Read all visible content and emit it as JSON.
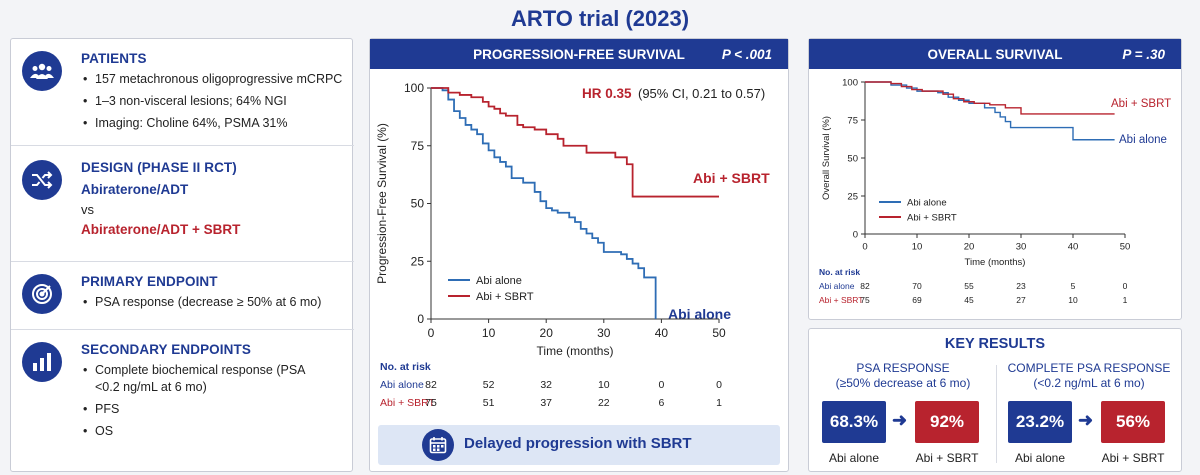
{
  "title": "ARTO trial (2023)",
  "left": {
    "patients": {
      "heading": "PATIENTS",
      "bullets": [
        "157 metachronous oligoprogressive mCRPC",
        "1–3 non-visceral lesions; 64% NGI",
        "Imaging: Choline 64%, PSMA 31%"
      ]
    },
    "design": {
      "heading": "DESIGN (PHASE II RCT)",
      "arm1": "Abiraterone/ADT",
      "vs": "vs",
      "arm2": "Abiraterone/ADT + SBRT"
    },
    "primary": {
      "heading": "PRIMARY ENDPOINT",
      "bullets": [
        "PSA response (decrease ≥ 50% at 6 mo)"
      ]
    },
    "secondary": {
      "heading": "SECONDARY ENDPOINTS",
      "bullets": [
        "Complete biochemical response (PSA <0.2 ng/mL at 6 mo)",
        "PFS",
        "OS"
      ]
    }
  },
  "pfs": {
    "header": "PROGRESSION-FREE SURVIVAL",
    "pvalue": "P < .001",
    "hr_bold": "HR 0.35",
    "hr_rest": " (95% CI, 0.21 to 0.57)",
    "label_sbrt": "Abi + SBRT",
    "label_alone": "Abi alone",
    "risk": {
      "title": "No. at risk",
      "rows": [
        {
          "label": "Abi alone",
          "values": [
            "82",
            "52",
            "32",
            "10",
            "0",
            "0"
          ]
        },
        {
          "label": "Abi + SBRT",
          "values": [
            "75",
            "51",
            "37",
            "22",
            "6",
            "1"
          ]
        }
      ]
    },
    "banner": "Delayed progression with SBRT"
  },
  "os": {
    "header": "OVERALL SURVIVAL",
    "pvalue": "P = .30",
    "label_sbrt": "Abi + SBRT",
    "label_alone": "Abi alone",
    "risk": {
      "title": "No. at risk",
      "rows": [
        {
          "label": "Abi alone",
          "values": [
            "82",
            "70",
            "55",
            "23",
            "5",
            "0"
          ]
        },
        {
          "label": "Abi + SBRT",
          "values": [
            "75",
            "69",
            "45",
            "27",
            "10",
            "1"
          ]
        }
      ]
    }
  },
  "key_results": {
    "title": "KEY RESULTS",
    "psa": {
      "heading1": "PSA RESPONSE",
      "heading2": "(≥50% decrease at 6 mo)",
      "value_alone": "68.3%",
      "value_sbrt": "92%",
      "label_alone": "Abi alone",
      "label_sbrt": "Abi + SBRT"
    },
    "complete": {
      "heading1": "COMPLETE PSA RESPONSE",
      "heading2": "(<0.2 ng/mL at 6 mo)",
      "value_alone": "23.2%",
      "value_sbrt": "56%",
      "label_alone": "Abi alone",
      "label_sbrt": "Abi + SBRT"
    }
  },
  "colors": {
    "blue": "#1f3a93",
    "red": "#b8232e",
    "alone_line": "#2e6db5",
    "sbrt_line": "#b8232e"
  },
  "chart_data": [
    {
      "type": "line",
      "title": "PROGRESSION-FREE SURVIVAL",
      "xlabel": "Time (months)",
      "ylabel": "Progression-Free Survival (%)",
      "xlim": [
        0,
        50
      ],
      "ylim": [
        0,
        100
      ],
      "xticks": [
        "0",
        "10",
        "20",
        "30",
        "40",
        "50"
      ],
      "yticks": [
        "0",
        "25",
        "50",
        "75",
        "100"
      ],
      "legend": "bottom-left",
      "series": [
        {
          "name": "Abi alone",
          "color": "#2e6db5",
          "points": [
            [
              0,
              100
            ],
            [
              2,
              99
            ],
            [
              3,
              95
            ],
            [
              4,
              90
            ],
            [
              5,
              87
            ],
            [
              6,
              84
            ],
            [
              7,
              82
            ],
            [
              8,
              80
            ],
            [
              9,
              76
            ],
            [
              10,
              73
            ],
            [
              11,
              70
            ],
            [
              12,
              68
            ],
            [
              13,
              66
            ],
            [
              14,
              61
            ],
            [
              16,
              59
            ],
            [
              18,
              55
            ],
            [
              19,
              51
            ],
            [
              20,
              48
            ],
            [
              21,
              47
            ],
            [
              22,
              46
            ],
            [
              24,
              44
            ],
            [
              25,
              42
            ],
            [
              26,
              39
            ],
            [
              27,
              37
            ],
            [
              28,
              35
            ],
            [
              29,
              33
            ],
            [
              30,
              29
            ],
            [
              32,
              29
            ],
            [
              33,
              28
            ],
            [
              34,
              26
            ],
            [
              35,
              24
            ],
            [
              36,
              22
            ],
            [
              37,
              18
            ],
            [
              39,
              18
            ],
            [
              39,
              0
            ]
          ]
        },
        {
          "name": "Abi + SBRT",
          "color": "#b8232e",
          "points": [
            [
              0,
              100
            ],
            [
              2,
              100
            ],
            [
              3,
              98
            ],
            [
              5,
              97
            ],
            [
              7,
              96
            ],
            [
              9,
              94
            ],
            [
              10,
              92
            ],
            [
              11,
              91
            ],
            [
              12,
              89
            ],
            [
              13,
              88
            ],
            [
              15,
              84
            ],
            [
              16,
              83
            ],
            [
              18,
              82
            ],
            [
              20,
              80
            ],
            [
              22,
              78
            ],
            [
              23,
              75
            ],
            [
              26,
              75
            ],
            [
              27,
              72
            ],
            [
              31,
              72
            ],
            [
              32,
              70
            ],
            [
              34,
              67
            ],
            [
              35,
              53
            ],
            [
              50,
              53
            ]
          ]
        }
      ]
    },
    {
      "type": "line",
      "title": "OVERALL SURVIVAL",
      "xlabel": "Time (months)",
      "ylabel": "Overall Survival (%)",
      "xlim": [
        0,
        50
      ],
      "ylim": [
        0,
        100
      ],
      "xticks": [
        "0",
        "10",
        "20",
        "30",
        "40",
        "50"
      ],
      "yticks": [
        "0",
        "25",
        "50",
        "75",
        "100"
      ],
      "legend": "bottom-left",
      "series": [
        {
          "name": "Abi alone",
          "color": "#2e6db5",
          "points": [
            [
              0,
              100
            ],
            [
              3,
              100
            ],
            [
              5,
              98
            ],
            [
              8,
              96
            ],
            [
              10,
              94
            ],
            [
              14,
              93
            ],
            [
              16,
              90
            ],
            [
              18,
              88
            ],
            [
              20,
              86
            ],
            [
              23,
              83
            ],
            [
              25,
              80
            ],
            [
              26,
              77
            ],
            [
              27,
              74
            ],
            [
              28,
              70
            ],
            [
              40,
              70
            ],
            [
              40,
              62
            ],
            [
              48,
              62
            ]
          ]
        },
        {
          "name": "Abi + SBRT",
          "color": "#b8232e",
          "points": [
            [
              0,
              100
            ],
            [
              3,
              100
            ],
            [
              5,
              99
            ],
            [
              7,
              97
            ],
            [
              9,
              95
            ],
            [
              11,
              94
            ],
            [
              15,
              92
            ],
            [
              17,
              89
            ],
            [
              19,
              87
            ],
            [
              21,
              86
            ],
            [
              24,
              85
            ],
            [
              27,
              83
            ],
            [
              30,
              79
            ],
            [
              48,
              79
            ]
          ]
        }
      ]
    }
  ]
}
